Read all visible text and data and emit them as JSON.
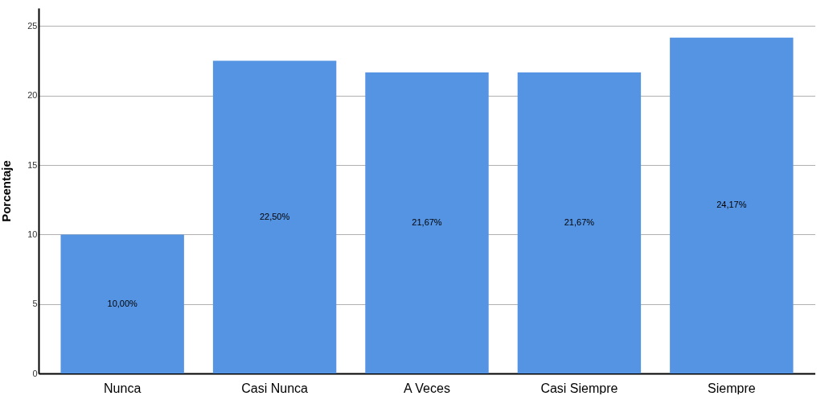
{
  "chart_data": {
    "type": "bar",
    "ylabel": "Porcentaje",
    "categories": [
      "Nunca",
      "Casi Nunca",
      "A Veces",
      "Casi Siempre",
      "Siempre"
    ],
    "values": [
      10.0,
      22.5,
      21.67,
      21.67,
      24.17
    ],
    "value_labels": [
      "10,00%",
      "22,50%",
      "21,67%",
      "21,67%",
      "24,17%"
    ],
    "color": "#5494e3",
    "ylim": [
      0,
      26.3
    ],
    "yticks": [
      0,
      5,
      10,
      15,
      20,
      25
    ],
    "grid": "y"
  }
}
